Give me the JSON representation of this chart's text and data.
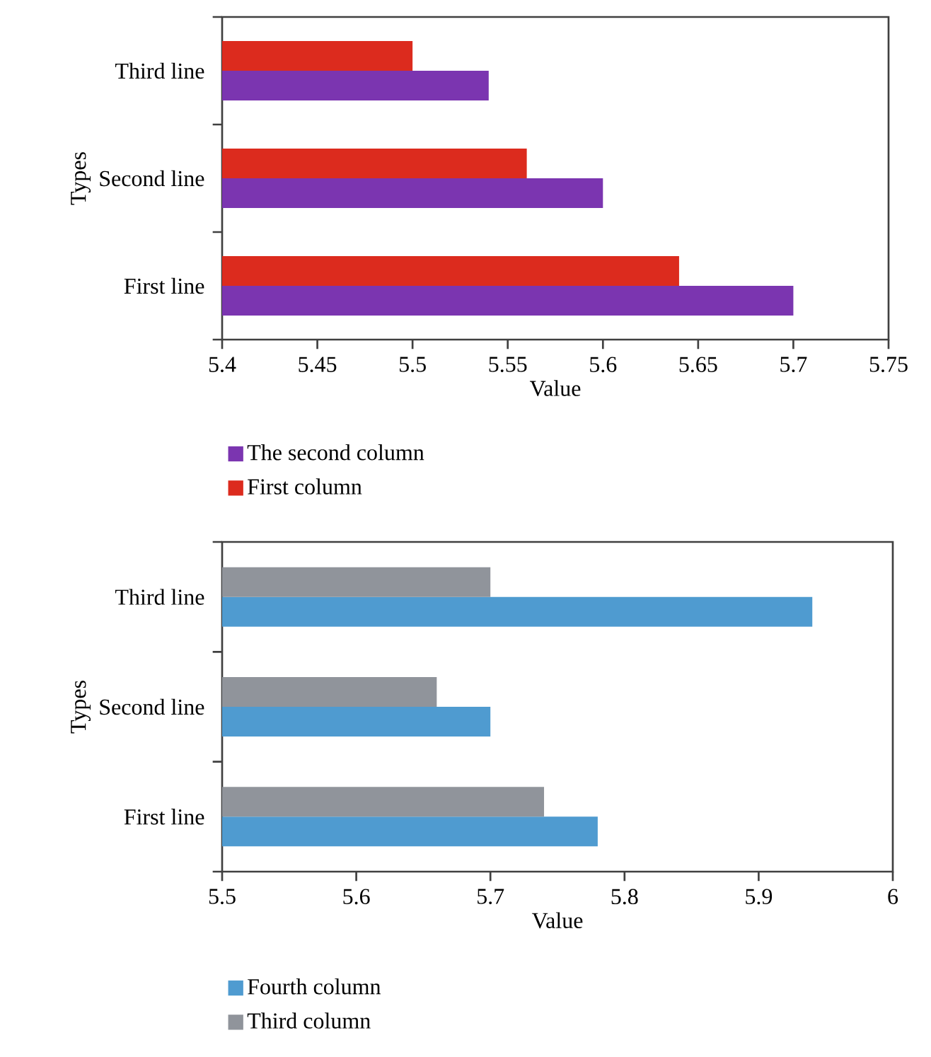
{
  "chart_data": [
    {
      "type": "bar",
      "orientation": "horizontal",
      "xlabel": "Value",
      "ylabel": "Types",
      "categories": [
        "Third line",
        "Second line",
        "First line"
      ],
      "xlim": [
        5.4,
        5.75
      ],
      "xticks": [
        5.4,
        5.45,
        5.5,
        5.55,
        5.6,
        5.65,
        5.7,
        5.75
      ],
      "legend": "bottom",
      "series": [
        {
          "name": "The second column",
          "color": "#7b35b0",
          "values": [
            5.54,
            5.6,
            5.7
          ]
        },
        {
          "name": "First column",
          "color": "#dc2b1e",
          "values": [
            5.5,
            5.56,
            5.64
          ]
        }
      ]
    },
    {
      "type": "bar",
      "orientation": "horizontal",
      "xlabel": "Value",
      "ylabel": "Types",
      "categories": [
        "Third line",
        "Second line",
        "First line"
      ],
      "xlim": [
        5.5,
        6
      ],
      "xticks": [
        5.5,
        5.6,
        5.7,
        5.8,
        5.9,
        6
      ],
      "legend": "bottom",
      "series": [
        {
          "name": "Fourth column",
          "color": "#4f9bd0",
          "values": [
            5.94,
            5.7,
            5.78
          ]
        },
        {
          "name": "Third column",
          "color": "#90949b",
          "values": [
            5.7,
            5.66,
            5.74
          ]
        }
      ]
    }
  ]
}
